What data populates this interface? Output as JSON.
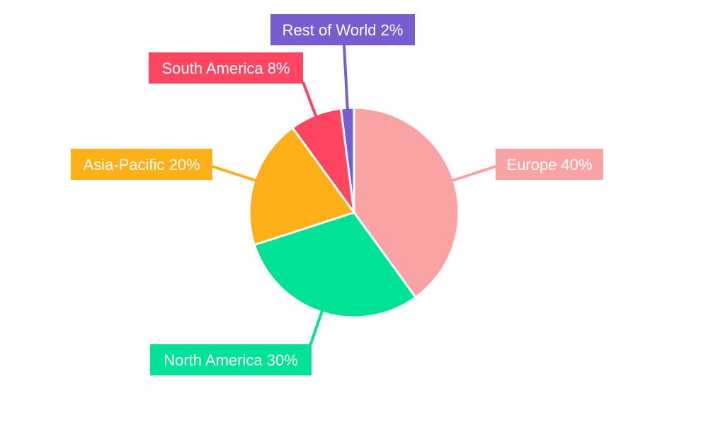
{
  "chart_data": {
    "type": "pie",
    "categories": [
      "Europe",
      "North America",
      "Asia-Pacific",
      "South America",
      "Rest of World"
    ],
    "values": [
      40,
      30,
      20,
      8,
      2
    ],
    "labels": [
      "Europe 40%",
      "North America 30%",
      "Asia-Pacific 20%",
      "South America 8%",
      "Rest of World 2%"
    ],
    "colors": [
      "#f9a3a4",
      "#00e396",
      "#feb019",
      "#ff4560",
      "#775dd0"
    ],
    "start_angle": "top, clockwise",
    "legend": "none"
  }
}
